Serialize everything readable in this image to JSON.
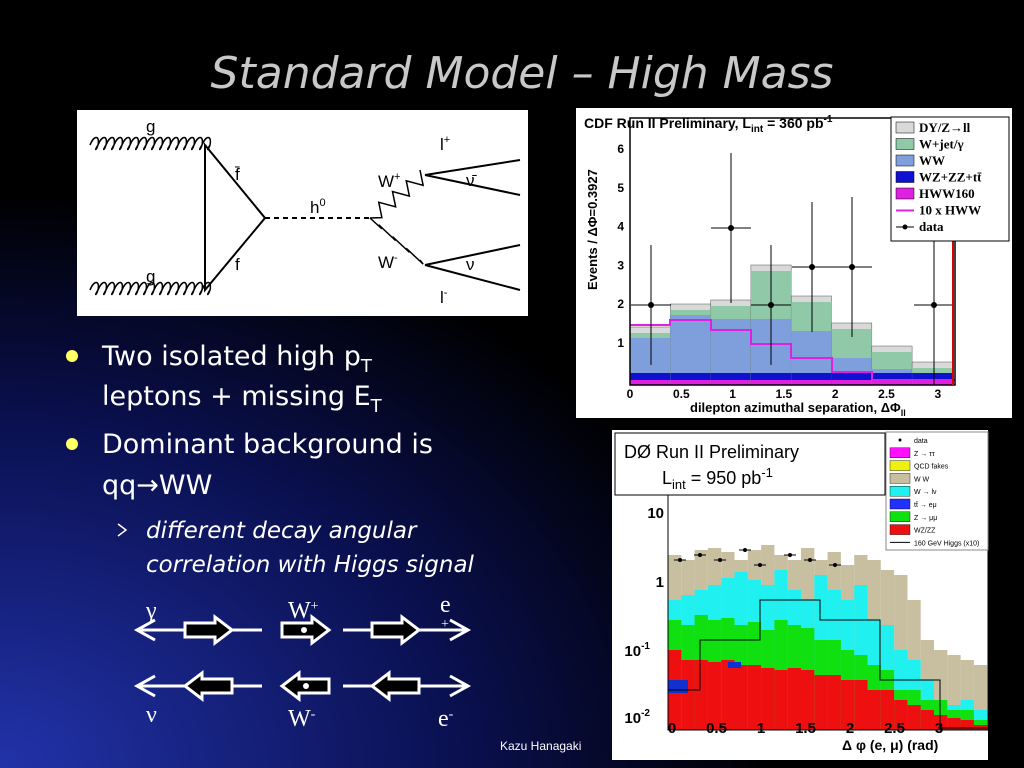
{
  "title": "Standard Model – High Mass",
  "feynman": {
    "g1": "g",
    "fbar": "f̄",
    "f": "f",
    "g2": "g",
    "h": "h",
    "h_sup": "0",
    "wp": "W",
    "wp_sup": "+",
    "wm": "W",
    "wm_sup": "-",
    "lp": "l",
    "lp_sup": "+",
    "nubar": "ν̄",
    "nu": "ν",
    "lm": "l",
    "lm_sup": "-"
  },
  "bullets": [
    {
      "lines": [
        [
          "Two isolated high p",
          "T"
        ],
        [
          "leptons + missing E",
          "T"
        ]
      ]
    },
    {
      "lines": [
        [
          "Dominant background is"
        ],
        [
          "qq→WW"
        ]
      ]
    }
  ],
  "subbullets": [
    {
      "lines": [
        "different decay angular",
        "correlation with Higgs signal"
      ]
    }
  ],
  "cdf": {
    "title": [
      "CDF Run II Preliminary, L",
      "int",
      " = 360 pb",
      "-1"
    ],
    "ylabel": "Events / ΔΦ=0.3927",
    "xlabel": [
      "dilepton azimuthal separation, ΔΦ",
      "ll"
    ],
    "yticks": [
      "1",
      "2",
      "3",
      "4",
      "5",
      "6"
    ],
    "xticks": [
      "0",
      "0.5",
      "1",
      "1.5",
      "2",
      "2.5",
      "3"
    ],
    "legend": [
      "DY/Z→ll",
      "W+jet/γ",
      "WW",
      "WZ+ZZ+tt̄",
      "HWW160",
      "10 x HWW",
      "data"
    ]
  },
  "d0": {
    "title": "DØ Run II Preliminary",
    "lumi": [
      "L",
      "int",
      " = 950 pb",
      "-1"
    ],
    "legend": [
      "data",
      "Z → ττ",
      "QCD fakes",
      "W W",
      "W → lν",
      "tt̄ → eμ",
      "Z → μμ",
      "WZ/ZZ",
      "160 GeV Higgs (x10)"
    ],
    "yticks": [
      [
        "10"
      ],
      [
        "1"
      ],
      [
        "10",
        "-1"
      ],
      [
        "10",
        "-2"
      ]
    ],
    "xticks": [
      "0",
      "0.5",
      "1",
      "1.5",
      "2",
      "2.5",
      "3"
    ],
    "xlabel": "Δ φ (e, μ) (rad)"
  },
  "spin": {
    "gamma": "γ",
    "wp": "W",
    "wp_sup": "+",
    "ep": "e",
    "ep_sup": "+",
    "nu": "ν",
    "wm": "W",
    "wm_sup": "-",
    "em": "e",
    "em_sup": "-"
  },
  "footer": "Kazu Hanagaki"
}
